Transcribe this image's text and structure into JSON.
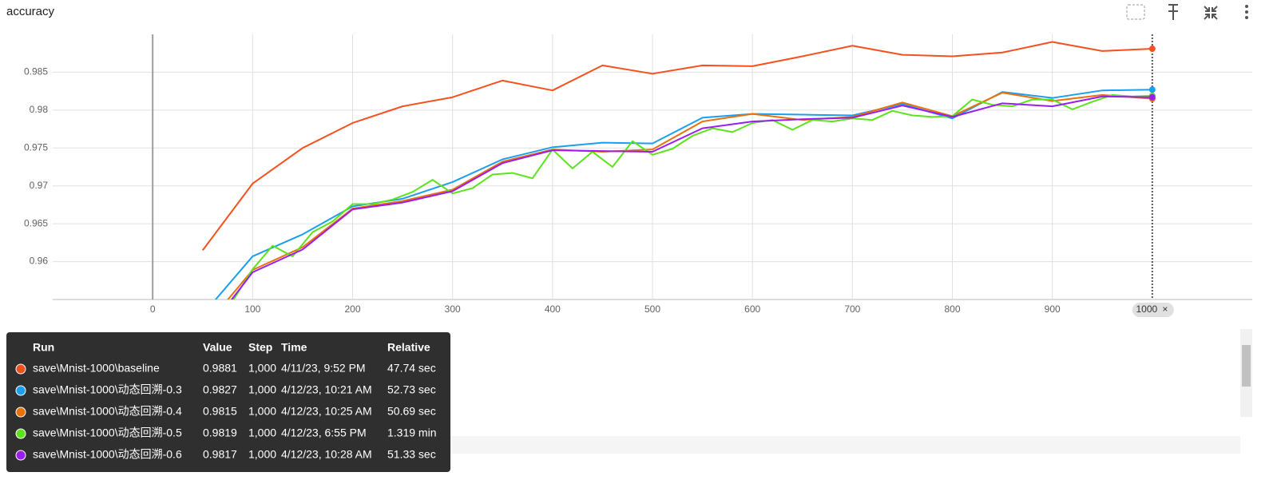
{
  "chart_data": {
    "type": "line",
    "title": "accuracy",
    "x": [
      50,
      100,
      150,
      200,
      250,
      300,
      350,
      400,
      450,
      500,
      550,
      600,
      650,
      700,
      750,
      800,
      850,
      900,
      950,
      1000
    ],
    "xlim": [
      -100,
      1100
    ],
    "xticks": [
      0,
      100,
      200,
      300,
      400,
      500,
      600,
      700,
      800,
      900
    ],
    "ylim": [
      0.955,
      0.99
    ],
    "yticks": [
      0.96,
      0.965,
      0.97,
      0.975,
      0.98,
      0.985
    ],
    "grid": true,
    "cursor_step": 1000,
    "series": [
      {
        "name": "save\\Mnist-1000\\baseline",
        "color": "#f4511e",
        "values": [
          0.9615,
          0.9703,
          0.975,
          0.9783,
          0.9805,
          0.9817,
          0.9839,
          0.9826,
          0.9859,
          0.9848,
          0.9859,
          0.9858,
          0.9871,
          0.9885,
          0.9873,
          0.9871,
          0.9876,
          0.989,
          0.9878,
          0.9881
        ]
      },
      {
        "name": "save\\Mnist-1000\\动态回溯-0.3",
        "color": "#1a9ff0",
        "values": [
          0.953,
          0.9607,
          0.9636,
          0.9673,
          0.9683,
          0.9705,
          0.9735,
          0.9751,
          0.9757,
          0.9756,
          0.979,
          0.9795,
          0.9794,
          0.9793,
          0.9808,
          0.9789,
          0.9824,
          0.9816,
          0.9826,
          0.9827
        ]
      },
      {
        "name": "save\\Mnist-1000\\动态回溯-0.4",
        "color": "#e8710a",
        "values": [
          0.951,
          0.9589,
          0.9619,
          0.967,
          0.968,
          0.9695,
          0.9732,
          0.9748,
          0.9745,
          0.9748,
          0.9785,
          0.9795,
          0.9787,
          0.9791,
          0.981,
          0.9792,
          0.9823,
          0.9812,
          0.982,
          0.9815
        ]
      },
      {
        "name": "save\\Mnist-1000\\动态回溯-0.5",
        "color": "#5ce31a",
        "x": [
          60,
          80,
          100,
          120,
          140,
          160,
          180,
          200,
          220,
          240,
          260,
          280,
          300,
          320,
          340,
          360,
          380,
          400,
          420,
          440,
          460,
          480,
          500,
          520,
          540,
          560,
          580,
          600,
          620,
          640,
          660,
          680,
          700,
          720,
          740,
          760,
          780,
          800,
          820,
          840,
          860,
          880,
          900,
          920,
          940,
          960,
          980,
          1000
        ],
        "values": [
          0.95,
          0.9548,
          0.959,
          0.9621,
          0.9607,
          0.9639,
          0.9653,
          0.9676,
          0.9676,
          0.9682,
          0.9692,
          0.9708,
          0.969,
          0.9697,
          0.9715,
          0.9717,
          0.971,
          0.9748,
          0.9723,
          0.9745,
          0.9725,
          0.9759,
          0.9741,
          0.9749,
          0.9766,
          0.9776,
          0.9771,
          0.9783,
          0.9787,
          0.9774,
          0.9787,
          0.9785,
          0.9789,
          0.9787,
          0.9799,
          0.9793,
          0.9791,
          0.9792,
          0.9814,
          0.9807,
          0.9805,
          0.9814,
          0.9814,
          0.9801,
          0.9811,
          0.982,
          0.9818,
          0.9819
        ]
      },
      {
        "name": "save\\Mnist-1000\\动态回溯-0.6",
        "color": "#9b1cf0",
        "values": [
          0.95,
          0.9586,
          0.9616,
          0.9669,
          0.9678,
          0.9693,
          0.973,
          0.9747,
          0.9746,
          0.9745,
          0.9776,
          0.9785,
          0.9788,
          0.979,
          0.9806,
          0.9791,
          0.9809,
          0.9805,
          0.9818,
          0.9817
        ]
      }
    ]
  },
  "tooltip": {
    "headers": [
      "Run",
      "Value",
      "Step",
      "Time",
      "Relative"
    ],
    "rows": [
      [
        0.9881,
        "1,000",
        "4/11/23, 9:52 PM",
        "47.74 sec"
      ],
      [
        0.9827,
        "1,000",
        "4/12/23, 10:21 AM",
        "52.73 sec"
      ],
      [
        0.9815,
        "1,000",
        "4/12/23, 10:25 AM",
        "50.69 sec"
      ],
      [
        0.9819,
        "1,000",
        "4/12/23, 6:55 PM",
        "1.319 min"
      ],
      [
        0.9817,
        "1,000",
        "4/12/23, 10:28 AM",
        "51.33 sec"
      ]
    ]
  }
}
